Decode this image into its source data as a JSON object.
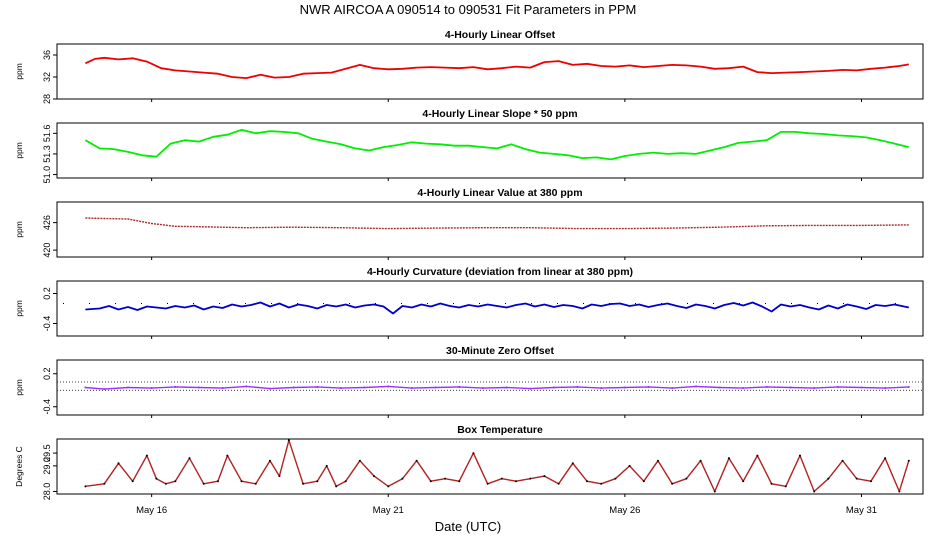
{
  "figure": {
    "title": "NWR   AIRCOA A   090514 to 090531   Fit Parameters in PPM",
    "xlabel": "Date (UTC)",
    "x_ticks": [
      {
        "day": 16,
        "label": "May 16"
      },
      {
        "day": 21,
        "label": "May 21"
      },
      {
        "day": 26,
        "label": "May 26"
      },
      {
        "day": 31,
        "label": "May 31"
      }
    ],
    "xlim": [
      14,
      32.3
    ]
  },
  "colors": {
    "offset": "#ee0000",
    "slope": "#00ee00",
    "value": "#a52a2a",
    "curvature": "#0000cc",
    "zero": "#9b30ff",
    "temperature": "#b22222"
  },
  "chart_data": [
    {
      "id": "offset",
      "type": "line",
      "title": "4-Hourly Linear Offset",
      "ylabel": "ppm",
      "yticks": [
        "28",
        "32",
        "36"
      ],
      "ytick_values": [
        28,
        32,
        36
      ],
      "ylim": [
        28,
        38
      ],
      "series": [
        {
          "x": [
            14.6,
            14.8,
            15.0,
            15.3,
            15.6,
            15.9,
            16.2,
            16.5,
            16.8,
            17.1,
            17.4,
            17.7,
            18.0,
            18.3,
            18.6,
            18.9,
            19.2,
            19.5,
            19.8,
            20.1,
            20.4,
            20.7,
            21.0,
            21.3,
            21.6,
            21.9,
            22.2,
            22.5,
            22.8,
            23.1,
            23.4,
            23.7,
            24.0,
            24.3,
            24.6,
            24.9,
            25.2,
            25.5,
            25.8,
            26.1,
            26.4,
            26.7,
            27.0,
            27.3,
            27.6,
            27.9,
            28.2,
            28.5,
            28.8,
            29.1,
            29.4,
            29.7,
            30.0,
            30.3,
            30.6,
            30.9,
            31.2,
            31.5,
            31.8,
            32.0
          ],
          "y": [
            34.5,
            35.3,
            35.5,
            35.2,
            35.4,
            34.8,
            33.6,
            33.2,
            33.0,
            32.8,
            32.6,
            32.0,
            31.8,
            32.4,
            31.9,
            32.0,
            32.6,
            32.7,
            32.8,
            33.5,
            34.2,
            33.6,
            33.4,
            33.5,
            33.7,
            33.8,
            33.7,
            33.6,
            33.8,
            33.4,
            33.6,
            33.9,
            33.7,
            34.7,
            34.9,
            34.2,
            34.4,
            34.0,
            33.9,
            34.1,
            33.8,
            34.0,
            34.2,
            34.1,
            33.9,
            33.5,
            33.6,
            33.9,
            32.9,
            32.7,
            32.8,
            32.9,
            33.0,
            33.1,
            33.3,
            33.2,
            33.5,
            33.7,
            34.0,
            34.3
          ]
        }
      ]
    },
    {
      "id": "slope",
      "type": "line",
      "title": "4-Hourly Linear Slope * 50 ppm",
      "ylabel": "ppm",
      "yticks": [
        "51.0",
        "51.3",
        "51.6"
      ],
      "ytick_values": [
        51.0,
        51.3,
        51.6
      ],
      "ylim": [
        50.95,
        51.75
      ],
      "series": [
        {
          "x": [
            14.6,
            14.9,
            15.2,
            15.5,
            15.8,
            16.1,
            16.4,
            16.7,
            17.0,
            17.3,
            17.6,
            17.9,
            18.2,
            18.5,
            18.8,
            19.1,
            19.4,
            19.7,
            20.0,
            20.3,
            20.6,
            20.9,
            21.2,
            21.5,
            21.8,
            22.1,
            22.4,
            22.7,
            23.0,
            23.3,
            23.6,
            23.9,
            24.2,
            24.5,
            24.8,
            25.1,
            25.4,
            25.7,
            26.0,
            26.3,
            26.6,
            26.9,
            27.2,
            27.5,
            27.8,
            28.1,
            28.4,
            28.7,
            29.0,
            29.3,
            29.6,
            29.9,
            30.2,
            30.5,
            30.8,
            31.1,
            31.4,
            31.7,
            32.0
          ],
          "y": [
            51.5,
            51.38,
            51.37,
            51.33,
            51.28,
            51.26,
            51.45,
            51.5,
            51.48,
            51.55,
            51.58,
            51.65,
            51.6,
            51.63,
            51.62,
            51.6,
            51.52,
            51.48,
            51.44,
            51.38,
            51.35,
            51.4,
            51.43,
            51.47,
            51.45,
            51.44,
            51.42,
            51.42,
            51.4,
            51.38,
            51.44,
            51.37,
            51.32,
            51.3,
            51.28,
            51.24,
            51.25,
            51.22,
            51.27,
            51.3,
            51.32,
            51.3,
            51.31,
            51.3,
            51.35,
            51.4,
            51.46,
            51.48,
            51.5,
            51.62,
            51.62,
            51.6,
            51.59,
            51.57,
            51.56,
            51.54,
            51.5,
            51.45,
            51.4
          ]
        }
      ]
    },
    {
      "id": "value380",
      "type": "line",
      "title": "4-Hourly Linear Value at 380 ppm",
      "ylabel": "ppm",
      "yticks": [
        "420",
        "426"
      ],
      "ytick_values": [
        420,
        426
      ],
      "ylim": [
        418.5,
        430.5
      ],
      "series": [
        {
          "x": [
            14.6,
            15.0,
            15.5,
            16.0,
            16.5,
            17.0,
            18.0,
            19.0,
            20.0,
            21.0,
            22.0,
            23.0,
            24.0,
            25.0,
            26.0,
            27.0,
            28.0,
            29.0,
            30.0,
            31.0,
            32.0
          ],
          "y": [
            427.0,
            426.9,
            426.8,
            425.8,
            425.2,
            425.1,
            424.9,
            425.0,
            424.9,
            424.7,
            424.8,
            424.9,
            424.9,
            424.7,
            424.7,
            424.8,
            425.0,
            425.3,
            425.4,
            425.4,
            425.5
          ]
        }
      ]
    },
    {
      "id": "curvature",
      "type": "line",
      "title": "4-Hourly Curvature (deviation from linear at 380 ppm)",
      "ylabel": "ppm",
      "yticks": [
        "-0.4",
        "0.2"
      ],
      "ytick_values": [
        -0.4,
        0.2
      ],
      "ylim": [
        -0.65,
        0.45
      ],
      "reference_y": 0,
      "series": [
        {
          "x": [
            14.6,
            14.9,
            15.1,
            15.3,
            15.5,
            15.7,
            15.9,
            16.1,
            16.3,
            16.5,
            16.7,
            16.9,
            17.1,
            17.3,
            17.5,
            17.7,
            17.9,
            18.1,
            18.3,
            18.5,
            18.7,
            18.9,
            19.1,
            19.3,
            19.5,
            19.7,
            19.9,
            20.1,
            20.3,
            20.5,
            20.7,
            20.9,
            21.1,
            21.3,
            21.5,
            21.7,
            21.9,
            22.1,
            22.3,
            22.5,
            22.7,
            22.9,
            23.1,
            23.3,
            23.5,
            23.7,
            23.9,
            24.1,
            24.3,
            24.5,
            24.7,
            24.9,
            25.1,
            25.3,
            25.5,
            25.7,
            25.9,
            26.1,
            26.3,
            26.5,
            26.7,
            26.9,
            27.1,
            27.3,
            27.5,
            27.7,
            27.9,
            28.1,
            28.3,
            28.5,
            28.7,
            28.9,
            29.1,
            29.3,
            29.5,
            29.7,
            29.9,
            30.1,
            30.3,
            30.5,
            30.7,
            30.9,
            31.1,
            31.3,
            31.5,
            31.7,
            32.0
          ],
          "y": [
            -0.12,
            -0.1,
            -0.05,
            -0.12,
            -0.07,
            -0.13,
            -0.06,
            -0.08,
            -0.1,
            -0.05,
            -0.08,
            -0.04,
            -0.12,
            -0.06,
            -0.09,
            -0.02,
            -0.06,
            -0.03,
            0.02,
            -0.06,
            0.0,
            -0.08,
            -0.02,
            -0.05,
            -0.1,
            -0.03,
            -0.06,
            -0.02,
            -0.08,
            -0.04,
            -0.02,
            -0.06,
            -0.2,
            -0.05,
            -0.08,
            -0.02,
            -0.06,
            0.0,
            -0.05,
            -0.08,
            -0.03,
            -0.06,
            -0.02,
            -0.05,
            -0.08,
            -0.03,
            0.0,
            -0.06,
            -0.02,
            -0.07,
            -0.03,
            -0.05,
            -0.1,
            -0.02,
            -0.05,
            -0.01,
            0.0,
            -0.05,
            -0.02,
            -0.07,
            -0.03,
            0.0,
            -0.05,
            -0.09,
            -0.02,
            -0.05,
            -0.1,
            -0.03,
            0.01,
            -0.04,
            0.02,
            -0.06,
            -0.16,
            -0.02,
            -0.06,
            -0.03,
            -0.08,
            -0.12,
            -0.04,
            -0.1,
            -0.02,
            -0.06,
            -0.11,
            -0.03,
            -0.05,
            -0.02,
            -0.08
          ]
        }
      ]
    },
    {
      "id": "zero",
      "type": "line",
      "title": "30-Minute Zero Offset",
      "ylabel": "ppm",
      "yticks": [
        "-0.4",
        "0.2"
      ],
      "ytick_values": [
        -0.4,
        0.2
      ],
      "ylim": [
        -0.55,
        0.45
      ],
      "reference_lines": [
        0.05,
        -0.1
      ],
      "series": [
        {
          "x": [
            14.6,
            15.0,
            15.5,
            16.0,
            16.5,
            17.0,
            17.5,
            18.0,
            18.5,
            19.0,
            19.5,
            20.0,
            20.5,
            21.0,
            21.5,
            22.0,
            22.5,
            23.0,
            23.5,
            24.0,
            24.5,
            25.0,
            25.5,
            26.0,
            26.5,
            27.0,
            27.5,
            28.0,
            28.5,
            29.0,
            29.5,
            30.0,
            30.5,
            31.0,
            31.5,
            32.0
          ],
          "y": [
            -0.05,
            -0.08,
            -0.05,
            -0.06,
            -0.04,
            -0.05,
            -0.06,
            -0.03,
            -0.07,
            -0.05,
            -0.04,
            -0.06,
            -0.05,
            -0.03,
            -0.06,
            -0.05,
            -0.04,
            -0.06,
            -0.05,
            -0.07,
            -0.05,
            -0.04,
            -0.06,
            -0.05,
            -0.04,
            -0.06,
            -0.03,
            -0.05,
            -0.06,
            -0.04,
            -0.05,
            -0.06,
            -0.04,
            -0.05,
            -0.06,
            -0.04
          ]
        }
      ]
    },
    {
      "id": "temperature",
      "type": "line",
      "title": "Box Temperature",
      "ylabel": "Degrees C",
      "yticks": [
        "28.0",
        "29.0",
        "29.5"
      ],
      "ytick_values": [
        28.0,
        29.0,
        29.5
      ],
      "ylim": [
        27.9,
        30.05
      ],
      "series": [
        {
          "x": [
            14.6,
            15.0,
            15.3,
            15.6,
            15.9,
            16.1,
            16.3,
            16.5,
            16.8,
            17.1,
            17.4,
            17.6,
            17.9,
            18.2,
            18.5,
            18.7,
            18.9,
            19.2,
            19.5,
            19.7,
            19.9,
            20.1,
            20.4,
            20.7,
            21.0,
            21.3,
            21.6,
            21.9,
            22.2,
            22.5,
            22.8,
            23.1,
            23.4,
            23.7,
            24.0,
            24.3,
            24.6,
            24.9,
            25.2,
            25.5,
            25.8,
            26.1,
            26.4,
            26.7,
            27.0,
            27.3,
            27.6,
            27.9,
            28.2,
            28.5,
            28.8,
            29.1,
            29.4,
            29.7,
            30.0,
            30.3,
            30.6,
            30.9,
            31.2,
            31.5,
            31.8,
            32.0
          ],
          "y": [
            28.2,
            28.3,
            29.1,
            28.4,
            29.4,
            28.5,
            28.3,
            28.4,
            29.3,
            28.3,
            28.4,
            29.4,
            28.4,
            28.3,
            29.2,
            28.6,
            30.0,
            28.3,
            28.4,
            29.0,
            28.2,
            28.4,
            29.2,
            28.6,
            28.2,
            28.5,
            29.2,
            28.4,
            28.5,
            28.4,
            29.5,
            28.3,
            28.5,
            28.4,
            28.5,
            28.6,
            28.3,
            29.1,
            28.4,
            28.3,
            28.5,
            29.0,
            28.4,
            29.2,
            28.3,
            28.5,
            29.2,
            28.0,
            29.3,
            28.4,
            29.4,
            28.3,
            28.2,
            29.4,
            28.0,
            28.5,
            29.2,
            28.5,
            28.4,
            29.3,
            28.0,
            29.2
          ]
        }
      ]
    }
  ]
}
